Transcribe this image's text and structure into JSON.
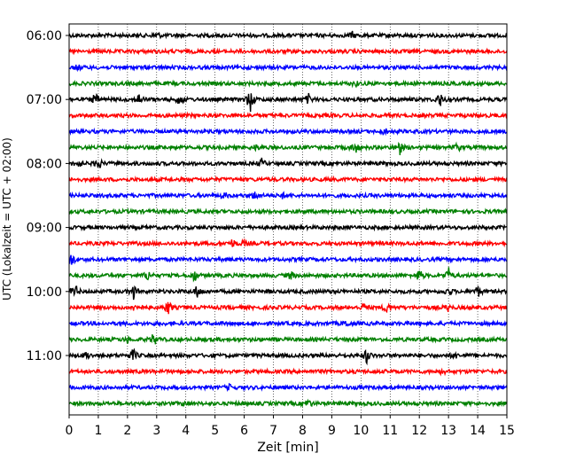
{
  "chart_data": {
    "type": "line",
    "xlabel": "Zeit  [min]",
    "ylabel": "UTC (Lokalzeit = UTC + 02:00)",
    "xlim": [
      0,
      15
    ],
    "x_ticks": [
      "0",
      "1",
      "2",
      "3",
      "4",
      "5",
      "6",
      "7",
      "8",
      "9",
      "10",
      "11",
      "12",
      "13",
      "14",
      "15"
    ],
    "y_tick_labels": [
      "06:00",
      "07:00",
      "08:00",
      "09:00",
      "10:00",
      "11:00"
    ],
    "grid": "vertical dotted",
    "row_interval_minutes": 15,
    "start_time": "06:00",
    "colors": [
      "#000000",
      "#ff0000",
      "#0000ff",
      "#008000"
    ],
    "traces": [
      {
        "start": "06:00",
        "color": "#000000",
        "events": [
          [
            3.0,
            0.4
          ],
          [
            9.7,
            0.35
          ]
        ]
      },
      {
        "start": "06:15",
        "color": "#ff0000",
        "events": []
      },
      {
        "start": "06:30",
        "color": "#0000ff",
        "events": [
          [
            0.3,
            0.3
          ]
        ]
      },
      {
        "start": "06:45",
        "color": "#008000",
        "events": [
          [
            9.8,
            0.3
          ]
        ]
      },
      {
        "start": "07:00",
        "color": "#000000",
        "events": [
          [
            0.9,
            0.8
          ],
          [
            2.4,
            0.7
          ],
          [
            3.8,
            0.8
          ],
          [
            6.2,
            1.6
          ],
          [
            8.2,
            0.6
          ],
          [
            12.7,
            1.0
          ]
        ]
      },
      {
        "start": "07:15",
        "color": "#ff0000",
        "events": []
      },
      {
        "start": "07:30",
        "color": "#0000ff",
        "events": [
          [
            10.8,
            0.4
          ]
        ]
      },
      {
        "start": "07:45",
        "color": "#008000",
        "events": [
          [
            6.4,
            0.3
          ],
          [
            9.8,
            0.8
          ],
          [
            11.3,
            1.2
          ],
          [
            13.3,
            0.5
          ]
        ]
      },
      {
        "start": "08:00",
        "color": "#000000",
        "events": [
          [
            0.3,
            0.6
          ],
          [
            1.0,
            0.8
          ],
          [
            6.6,
            0.5
          ]
        ]
      },
      {
        "start": "08:15",
        "color": "#ff0000",
        "events": []
      },
      {
        "start": "08:30",
        "color": "#0000ff",
        "events": [
          [
            5.3,
            0.4
          ],
          [
            6.4,
            0.6
          ],
          [
            7.3,
            0.3
          ]
        ]
      },
      {
        "start": "08:45",
        "color": "#008000",
        "events": []
      },
      {
        "start": "09:00",
        "color": "#000000",
        "events": []
      },
      {
        "start": "09:15",
        "color": "#ff0000",
        "events": [
          [
            5.6,
            0.5
          ],
          [
            6.0,
            0.3
          ]
        ]
      },
      {
        "start": "09:30",
        "color": "#0000ff",
        "events": [
          [
            0.1,
            0.8
          ]
        ]
      },
      {
        "start": "09:45",
        "color": "#008000",
        "events": [
          [
            2.7,
            0.6
          ],
          [
            4.3,
            0.7
          ],
          [
            7.6,
            0.5
          ],
          [
            12.0,
            0.8
          ],
          [
            13.0,
            0.9
          ]
        ]
      },
      {
        "start": "10:00",
        "color": "#000000",
        "events": [
          [
            0.2,
            0.9
          ],
          [
            2.2,
            0.9
          ],
          [
            4.4,
            0.8
          ],
          [
            13.0,
            0.5
          ],
          [
            14.0,
            0.7
          ]
        ]
      },
      {
        "start": "10:15",
        "color": "#ff0000",
        "events": [
          [
            2.3,
            0.7
          ],
          [
            3.4,
            0.9
          ],
          [
            10.1,
            0.4
          ],
          [
            10.9,
            0.8
          ],
          [
            13.0,
            0.4
          ]
        ]
      },
      {
        "start": "10:30",
        "color": "#0000ff",
        "events": [
          [
            9.5,
            0.4
          ]
        ]
      },
      {
        "start": "10:45",
        "color": "#008000",
        "events": [
          [
            2.0,
            0.3
          ],
          [
            2.9,
            0.8
          ]
        ]
      },
      {
        "start": "11:00",
        "color": "#000000",
        "events": [
          [
            0.6,
            0.5
          ],
          [
            2.2,
            0.8
          ],
          [
            10.2,
            0.9
          ],
          [
            13.2,
            0.4
          ]
        ]
      },
      {
        "start": "11:15",
        "color": "#ff0000",
        "events": [
          [
            12.8,
            0.3
          ]
        ]
      },
      {
        "start": "11:30",
        "color": "#0000ff",
        "events": [
          [
            5.5,
            0.3
          ]
        ]
      },
      {
        "start": "11:45",
        "color": "#008000",
        "events": [
          [
            4.0,
            0.3
          ],
          [
            8.2,
            0.5
          ]
        ]
      }
    ]
  }
}
